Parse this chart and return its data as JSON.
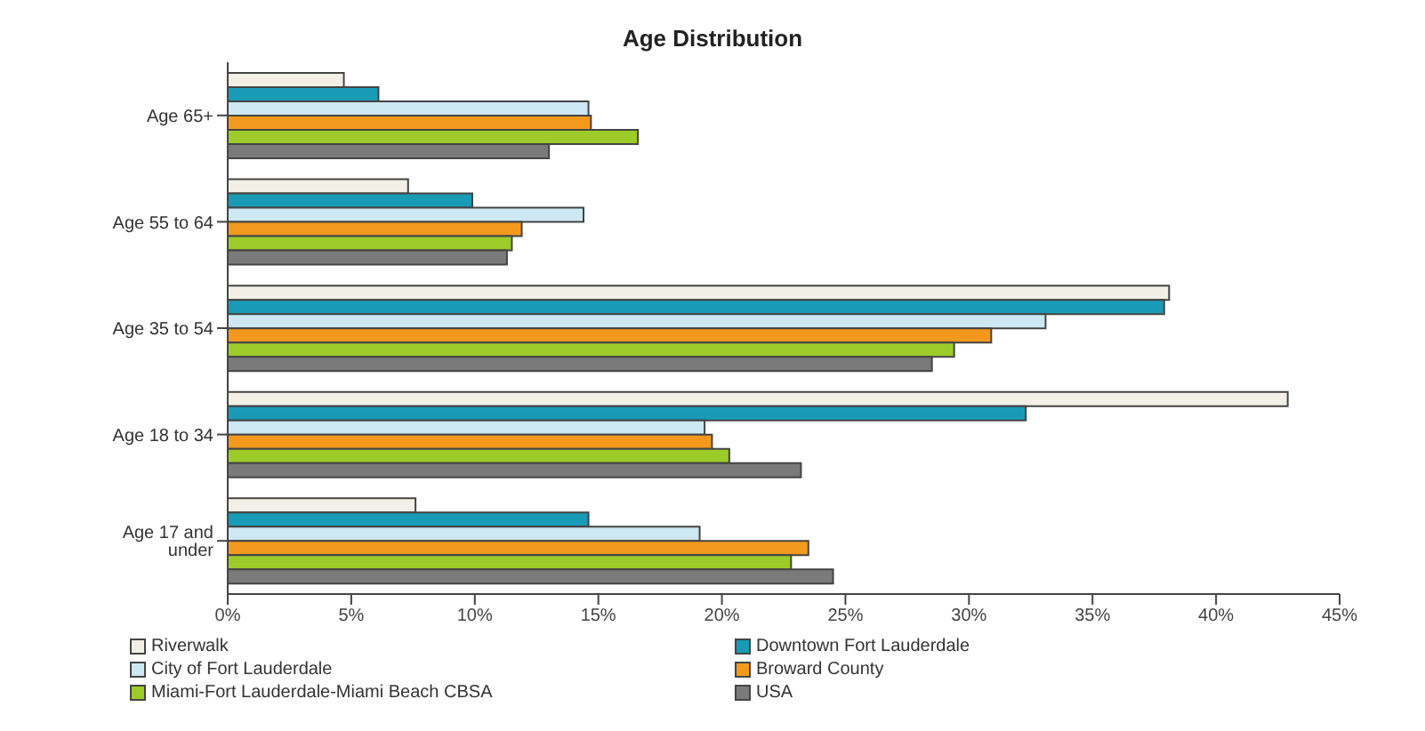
{
  "chart_data": {
    "type": "bar",
    "orientation": "horizontal",
    "title": "Age Distribution",
    "categories": [
      "Age 65+",
      "Age 55 to 64",
      "Age 35 to 54",
      "Age 18 to 34",
      "Age 17 and under"
    ],
    "series": [
      {
        "name": "Riverwalk",
        "color": "#f2f0e6",
        "values": [
          4.7,
          7.3,
          38.1,
          42.9,
          7.6
        ]
      },
      {
        "name": "Downtown Fort Lauderdale",
        "color": "#1a9bb5",
        "values": [
          6.1,
          9.9,
          37.9,
          32.3,
          14.6
        ]
      },
      {
        "name": "City of Fort Lauderdale",
        "color": "#cde8f2",
        "values": [
          14.6,
          14.4,
          33.1,
          19.3,
          19.1
        ]
      },
      {
        "name": "Broward County",
        "color": "#f39a1e",
        "values": [
          14.7,
          11.9,
          30.9,
          19.6,
          23.5
        ]
      },
      {
        "name": "Miami-Fort Lauderdale-Miami Beach CBSA",
        "color": "#9dcc2a",
        "values": [
          16.6,
          11.5,
          29.4,
          20.3,
          22.8
        ]
      },
      {
        "name": "USA",
        "color": "#7a7a7a",
        "values": [
          13.0,
          11.3,
          28.5,
          23.2,
          24.5
        ]
      }
    ],
    "xlim": [
      0,
      45
    ],
    "xticks": [
      {
        "value": 0,
        "label": "0%"
      },
      {
        "value": 5,
        "label": "5%"
      },
      {
        "value": 10,
        "label": "10%"
      },
      {
        "value": 15,
        "label": "15%"
      },
      {
        "value": 20,
        "label": "20%"
      },
      {
        "value": 25,
        "label": "25%"
      },
      {
        "value": 30,
        "label": "30%"
      },
      {
        "value": 35,
        "label": "35%"
      },
      {
        "value": 40,
        "label": "40%"
      },
      {
        "value": 45,
        "label": "45%"
      }
    ],
    "grid": false,
    "legend": "bottom"
  }
}
